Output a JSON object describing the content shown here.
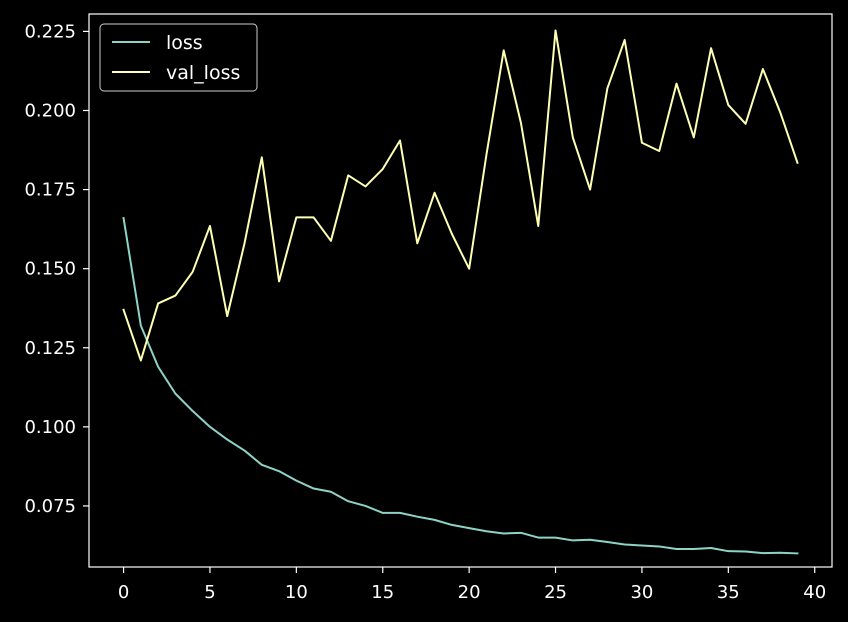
{
  "colors": {
    "background": "#000000",
    "axes": "#ffffff",
    "text": "#ffffff",
    "loss": "#8dd3c7",
    "val_loss": "#feffb3"
  },
  "chart_data": {
    "type": "line",
    "title": "",
    "xlabel": "",
    "ylabel": "",
    "xlim": [
      -2,
      41
    ],
    "ylim": [
      0.0557,
      0.2305
    ],
    "x_ticks": [
      0,
      5,
      10,
      15,
      20,
      25,
      30,
      35,
      40
    ],
    "x_tick_labels": [
      "0",
      "5",
      "10",
      "15",
      "20",
      "25",
      "30",
      "35",
      "40"
    ],
    "y_ticks": [
      0.075,
      0.1,
      0.125,
      0.15,
      0.175,
      0.2,
      0.225
    ],
    "y_tick_labels": [
      "0.075",
      "0.100",
      "0.125",
      "0.150",
      "0.175",
      "0.200",
      "0.225"
    ],
    "grid": false,
    "legend_position": "top-left",
    "x": [
      0,
      1,
      2,
      3,
      4,
      5,
      6,
      7,
      8,
      9,
      10,
      11,
      12,
      13,
      14,
      15,
      16,
      17,
      18,
      19,
      20,
      21,
      22,
      23,
      24,
      25,
      26,
      27,
      28,
      29,
      30,
      31,
      32,
      33,
      34,
      35,
      36,
      37,
      38,
      39
    ],
    "series": [
      {
        "name": "loss",
        "values": [
          0.166,
          0.132,
          0.119,
          0.1105,
          0.105,
          0.1,
          0.096,
          0.0925,
          0.088,
          0.086,
          0.083,
          0.0805,
          0.0795,
          0.0765,
          0.075,
          0.0728,
          0.0728,
          0.0716,
          0.0706,
          0.069,
          0.068,
          0.067,
          0.0663,
          0.0665,
          0.065,
          0.065,
          0.0641,
          0.0643,
          0.0636,
          0.0628,
          0.0625,
          0.0622,
          0.0614,
          0.0614,
          0.0617,
          0.0607,
          0.0606,
          0.0601,
          0.0602,
          0.06
        ]
      },
      {
        "name": "val_loss",
        "values": [
          0.137,
          0.121,
          0.139,
          0.1415,
          0.149,
          0.1635,
          0.135,
          0.158,
          0.1852,
          0.146,
          0.1662,
          0.1662,
          0.1588,
          0.1795,
          0.176,
          0.1815,
          0.1905,
          0.158,
          0.174,
          0.161,
          0.15,
          0.186,
          0.219,
          0.196,
          0.1635,
          0.2253,
          0.1915,
          0.175,
          0.207,
          0.2223,
          0.1898,
          0.1872,
          0.2085,
          0.1915,
          0.2197,
          0.2017,
          0.1958,
          0.2131,
          0.1995,
          0.1835
        ]
      }
    ]
  }
}
